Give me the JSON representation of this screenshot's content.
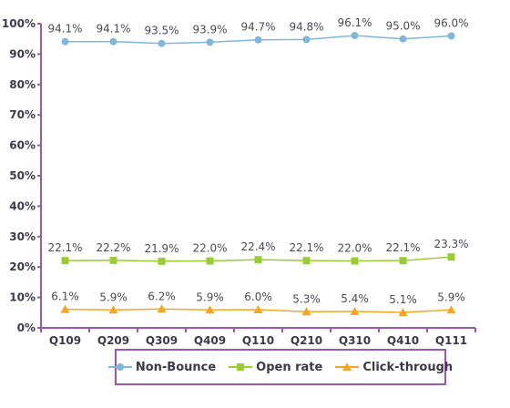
{
  "chart_data": {
    "type": "line",
    "title": "",
    "xlabel": "",
    "ylabel": "",
    "categories": [
      "Q109",
      "Q209",
      "Q309",
      "Q409",
      "Q110",
      "Q210",
      "Q310",
      "Q410",
      "Q111"
    ],
    "ylim": [
      0,
      100
    ],
    "yticks": [
      "0%",
      "10%",
      "20%",
      "30%",
      "40%",
      "50%",
      "60%",
      "70%",
      "80%",
      "90%",
      "100%"
    ],
    "grid": false,
    "legend_position": "bottom",
    "series": [
      {
        "name": "Non-Bounce",
        "color": "#7fb7dc",
        "marker": "circle",
        "values": [
          94.1,
          94.1,
          93.5,
          93.9,
          94.7,
          94.8,
          96.1,
          95.0,
          96.0
        ],
        "labels": [
          "94.1%",
          "94.1%",
          "93.5%",
          "93.9%",
          "94.7%",
          "94.8%",
          "96.1%",
          "95.0%",
          "96.0%"
        ]
      },
      {
        "name": "Open rate",
        "color": "#9acd32",
        "marker": "square",
        "values": [
          22.1,
          22.2,
          21.9,
          22.0,
          22.4,
          22.1,
          22.0,
          22.1,
          23.3
        ],
        "labels": [
          "22.1%",
          "22.2%",
          "21.9%",
          "22.0%",
          "22.4%",
          "22.1%",
          "22.0%",
          "22.1%",
          "23.3%"
        ]
      },
      {
        "name": "Click-through",
        "color": "#f5a623",
        "marker": "triangle",
        "values": [
          6.1,
          5.9,
          6.2,
          5.9,
          6.0,
          5.3,
          5.4,
          5.1,
          5.9
        ],
        "labels": [
          "6.1%",
          "5.9%",
          "6.2%",
          "5.9%",
          "6.0%",
          "5.3%",
          "5.4%",
          "5.1%",
          "5.9%"
        ]
      }
    ],
    "axis_color": "#9b57b0"
  }
}
